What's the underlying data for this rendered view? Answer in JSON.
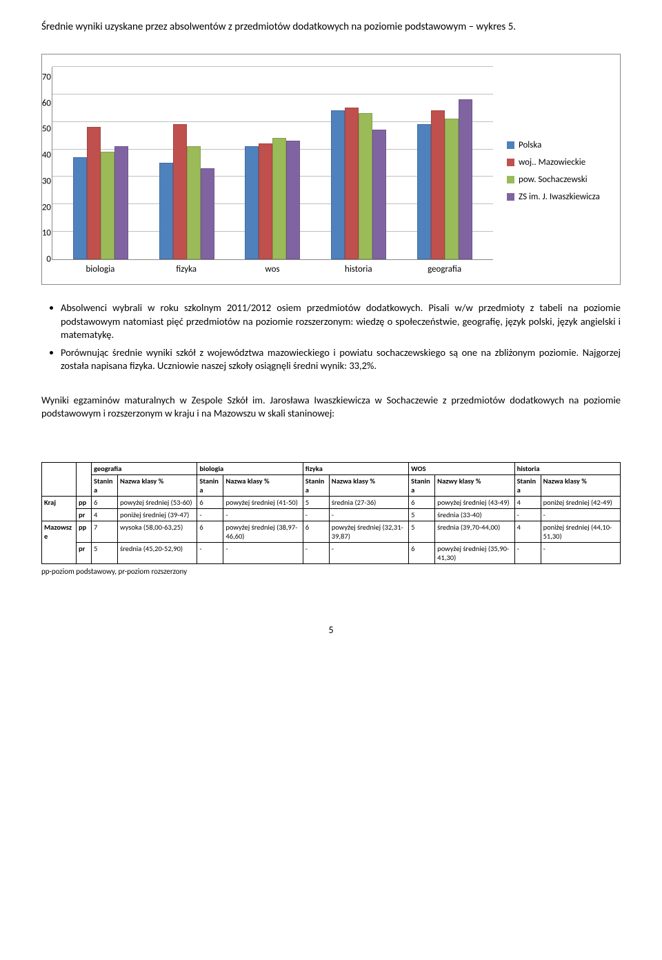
{
  "title": "Średnie wyniki uzyskane przez absolwentów z przedmiotów dodatkowych na poziomie podstawowym – wykres 5.",
  "chart": {
    "type": "bar",
    "ylim": [
      0,
      70
    ],
    "ytick_step": 10,
    "yticks": [
      70,
      60,
      50,
      40,
      30,
      20,
      10,
      0
    ],
    "categories": [
      "biologia",
      "fizyka",
      "wos",
      "historia",
      "geografia"
    ],
    "series": [
      {
        "label": "Polska",
        "color": "#4f81bd"
      },
      {
        "label": "woj.. Mazowieckie",
        "color": "#c0504d"
      },
      {
        "label": "pow. Sochaczewski",
        "color": "#9bbb59"
      },
      {
        "label": "ZS im. J. Iwaszkiewicza",
        "color": "#8064a2"
      }
    ],
    "data": {
      "biologia": [
        37,
        48,
        39,
        41
      ],
      "fizyka": [
        35,
        49,
        41,
        33
      ],
      "wos": [
        41,
        42,
        44,
        43
      ],
      "historia": [
        54,
        55,
        53,
        47
      ],
      "geografia": [
        49,
        54,
        51,
        58
      ]
    },
    "background_color": "#ffffff",
    "grid_color": "#bfbfbf"
  },
  "bullets": [
    "Absolwenci wybrali w roku szkolnym 2011/2012 osiem przedmiotów dodatkowych. Pisali w/w przedmioty z tabeli na poziomie podstawowym natomiast pięć przedmiotów na poziomie rozszerzonym: wiedzę o społeczeństwie, geografię, język polski, język angielski i matematykę.",
    "Porównując średnie wyniki szkół z województwa mazowieckiego i powiatu sochaczewskiego są one na zbliżonym poziomie. Najgorzej została napisana fizyka. Uczniowie naszej szkoły osiągnęli średni wynik: 33,2%."
  ],
  "para": "Wyniki egzaminów maturalnych w Zespole Szkół im. Jarosława Iwaszkiewicza w Sochaczewie z przedmiotów dodatkowych na poziomie podstawowym i rozszerzonym w kraju i na Mazowszu w skali staninowej:",
  "table": {
    "subjects": [
      "geografia",
      "biologia",
      "fizyka",
      "WOS",
      "historia"
    ],
    "col_pair": {
      "stanina": "Stanina",
      "nazwa": "Nazwa klasy %",
      "nazwy": "Nazwy klasy %"
    },
    "rows": [
      {
        "region": "Kraj",
        "level": "pp",
        "cells": [
          [
            "6",
            "powyżej średniej (53-60)"
          ],
          [
            "6",
            "powyżej średniej (41-50)"
          ],
          [
            "5",
            "średnia (27-36)"
          ],
          [
            "6",
            "powyżej średniej (43-49)"
          ],
          [
            "4",
            "poniżej średniej (42-49)"
          ]
        ]
      },
      {
        "region": "",
        "level": "pr",
        "cells": [
          [
            "4",
            "poniżej średniej (39-47)"
          ],
          [
            "-",
            "-"
          ],
          [
            "-",
            "-"
          ],
          [
            "5",
            "średnia (33-40)"
          ],
          [
            "-",
            "-"
          ]
        ]
      },
      {
        "region": "Mazowsze",
        "level": "pp",
        "cells": [
          [
            "7",
            "wysoka (58,00-63,25)"
          ],
          [
            "6",
            "powyżej średniej (38,97-46,60)"
          ],
          [
            "6",
            "powyżej średniej (32,31-39,87)"
          ],
          [
            "5",
            "średnia (39,70-44,00)"
          ],
          [
            "4",
            "poniżej średniej (44,10-51,30)"
          ]
        ]
      },
      {
        "region": "",
        "level": "pr",
        "cells": [
          [
            "5",
            "średnia (45,20-52,90)"
          ],
          [
            "-",
            "-"
          ],
          [
            "-",
            "-"
          ],
          [
            "6",
            "powyżej średniej (35,90-41,30)"
          ],
          [
            "-",
            "-"
          ]
        ]
      }
    ]
  },
  "footnote": "pp-poziom podstawowy, pr-poziom rozszerzony",
  "page": "5"
}
